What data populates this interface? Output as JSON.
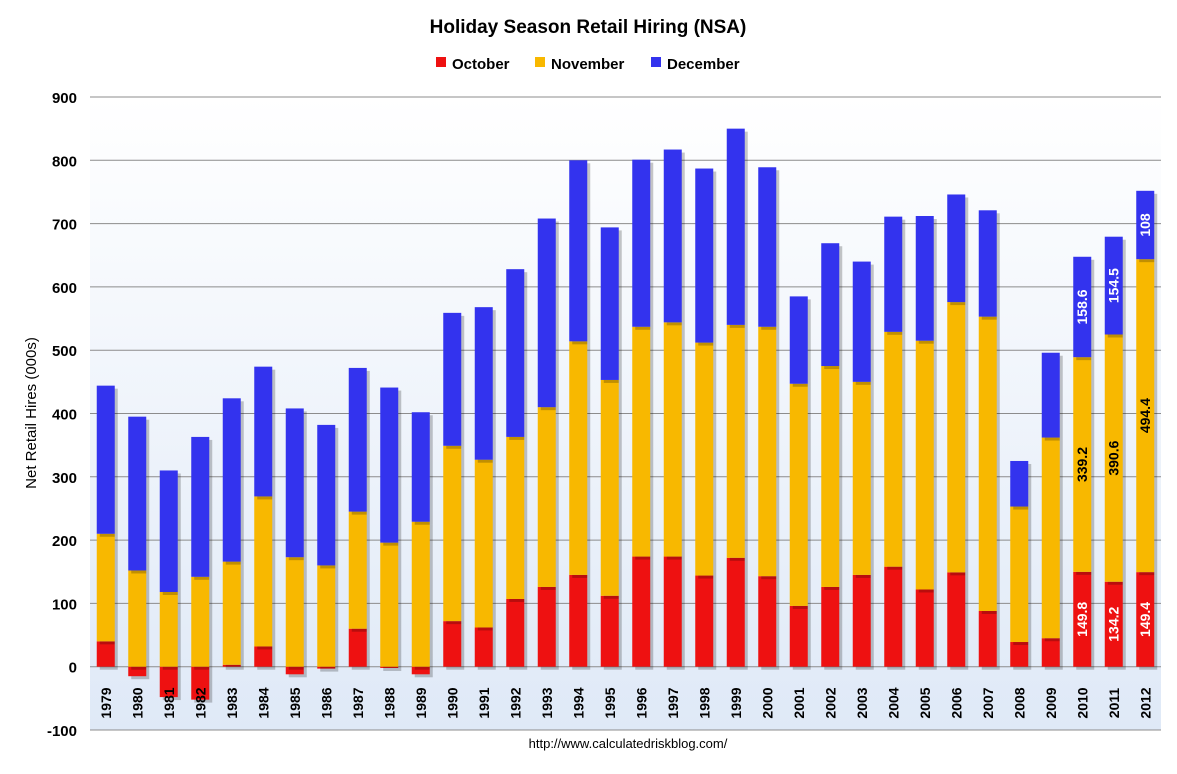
{
  "chart_data": {
    "type": "bar",
    "stacked": true,
    "title": "Holiday Season Retail Hiring (NSA)",
    "ylabel": "Net Retail Hires (000s)",
    "xlabel": "",
    "ylim": [
      -100,
      900
    ],
    "yticks": [
      -100,
      0,
      100,
      200,
      300,
      400,
      500,
      600,
      700,
      800,
      900
    ],
    "grid": true,
    "legend_position": "top-center",
    "source": "http://www.calculatedriskblog.com/",
    "categories": [
      "1979",
      "1980",
      "1981",
      "1982",
      "1983",
      "1984",
      "1985",
      "1986",
      "1987",
      "1988",
      "1989",
      "1990",
      "1991",
      "1992",
      "1993",
      "1994",
      "1995",
      "1996",
      "1997",
      "1998",
      "1999",
      "2000",
      "2001",
      "2002",
      "2003",
      "2004",
      "2005",
      "2006",
      "2007",
      "2008",
      "2009",
      "2010",
      "2011",
      "2012"
    ],
    "series": [
      {
        "name": "October",
        "color": "#ee1111",
        "values": [
          40,
          -15,
          -48,
          -52,
          3,
          32,
          -12,
          -3,
          60,
          -2,
          -12,
          72,
          62,
          107,
          126,
          145,
          112,
          174,
          174,
          144,
          172,
          143,
          96,
          126,
          145,
          158,
          122,
          149,
          88,
          39,
          45,
          149.8,
          134.2,
          149.4
        ]
      },
      {
        "name": "November",
        "color": "#f8b800",
        "values": [
          170,
          152,
          118,
          142,
          163,
          237,
          173,
          160,
          185,
          196,
          229,
          277,
          265,
          256,
          284,
          369,
          341,
          363,
          370,
          368,
          368,
          394,
          351,
          349,
          305,
          371,
          393,
          427,
          465,
          214,
          317,
          339.2,
          390.6,
          494.4
        ]
      },
      {
        "name": "December",
        "color": "#3333ee",
        "values": [
          234,
          243,
          192,
          221,
          258,
          205,
          235,
          222,
          227,
          245,
          173,
          210,
          241,
          265,
          298,
          286,
          241,
          264,
          273,
          275,
          310,
          252,
          138,
          194,
          190,
          182,
          197,
          170,
          168,
          72,
          134,
          158.6,
          154.5,
          108
        ]
      }
    ],
    "data_labels": [
      {
        "category": "2010",
        "series": "October",
        "text": "149.8"
      },
      {
        "category": "2010",
        "series": "November",
        "text": "339.2"
      },
      {
        "category": "2010",
        "series": "December",
        "text": "158.6"
      },
      {
        "category": "2011",
        "series": "October",
        "text": "134.2"
      },
      {
        "category": "2011",
        "series": "November",
        "text": "390.6"
      },
      {
        "category": "2011",
        "series": "December",
        "text": "154.5"
      },
      {
        "category": "2012",
        "series": "October",
        "text": "149.4"
      },
      {
        "category": "2012",
        "series": "November",
        "text": "494.4"
      },
      {
        "category": "2012",
        "series": "December",
        "text": "108"
      }
    ]
  }
}
